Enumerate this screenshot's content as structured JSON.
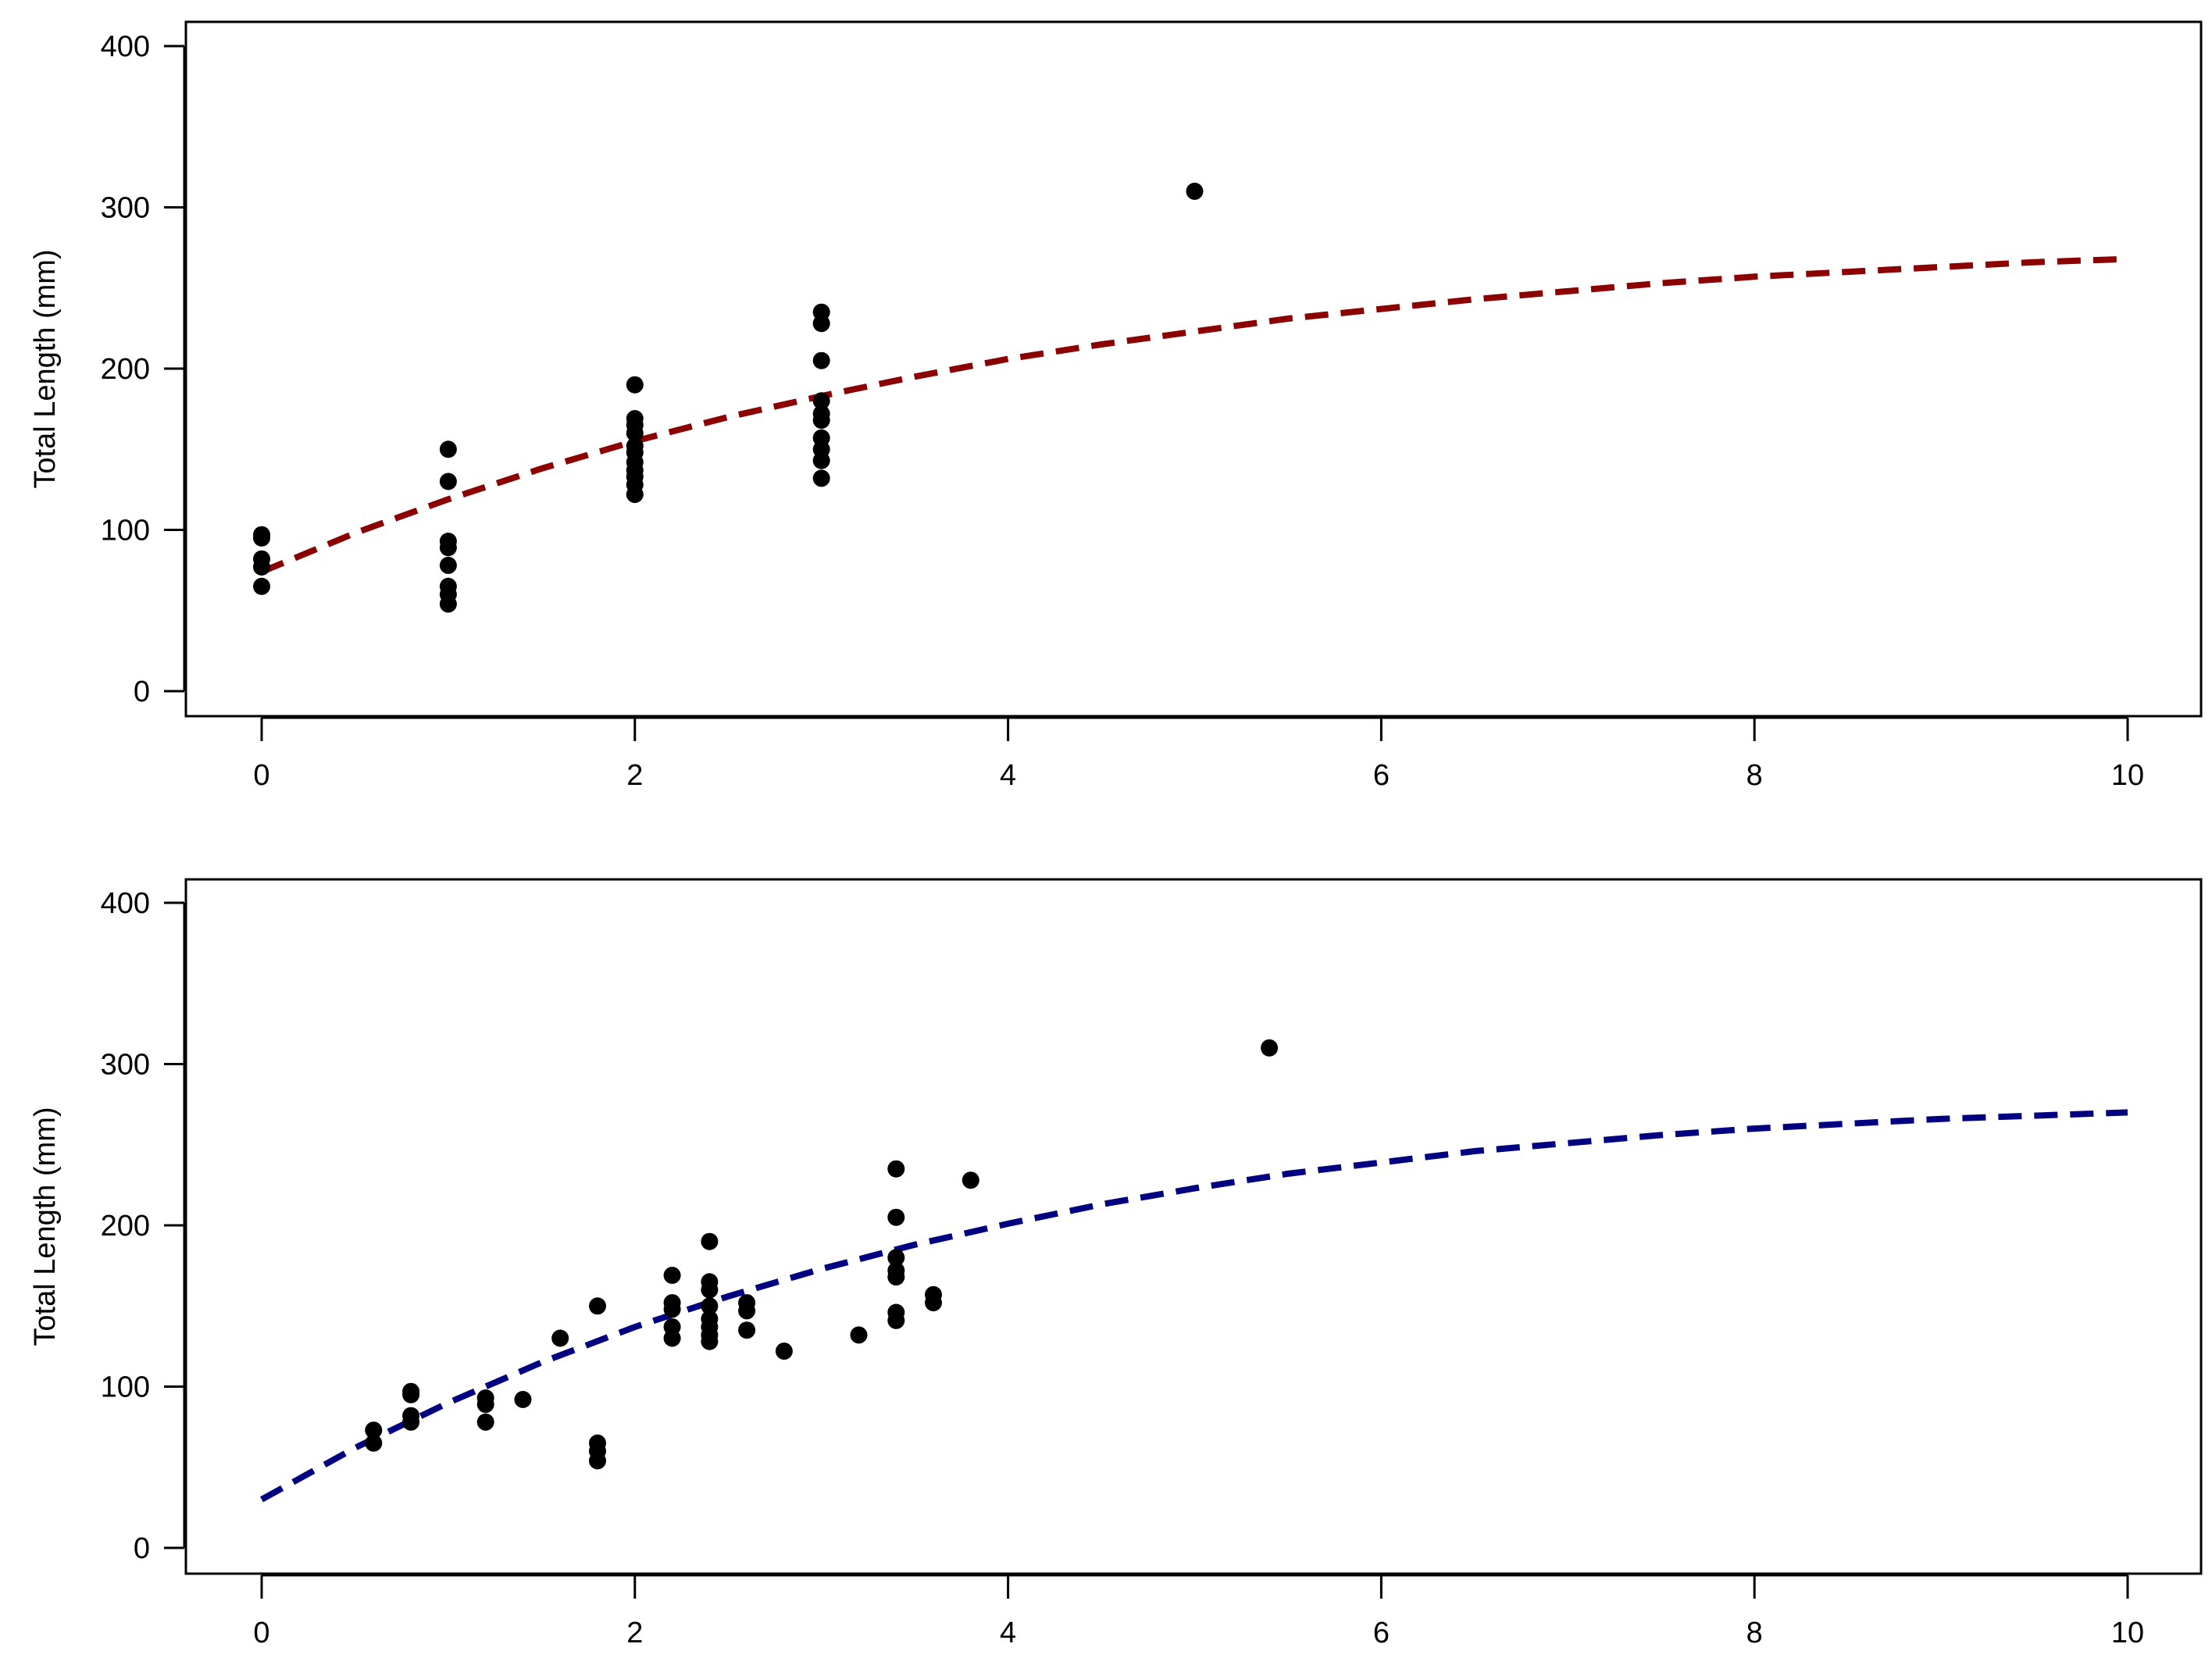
{
  "chart_data": [
    {
      "type": "scatter",
      "title": "",
      "xlabel": "",
      "ylabel": "Total Length (mm)",
      "xlim": [
        0,
        10
      ],
      "ylim": [
        0,
        400
      ],
      "xticks": [
        0,
        2,
        4,
        6,
        8,
        10
      ],
      "yticks": [
        0,
        100,
        200,
        300,
        400
      ],
      "grid": false,
      "series": [
        {
          "kind": "points",
          "color": "#000000",
          "points": [
            [
              0,
              97
            ],
            [
              0,
              95
            ],
            [
              0,
              82
            ],
            [
              0,
              77
            ],
            [
              0,
              65
            ],
            [
              1,
              150
            ],
            [
              1,
              130
            ],
            [
              1,
              93
            ],
            [
              1,
              89
            ],
            [
              1,
              78
            ],
            [
              1,
              65
            ],
            [
              1,
              60
            ],
            [
              1,
              54
            ],
            [
              2,
              190
            ],
            [
              2,
              169
            ],
            [
              2,
              165
            ],
            [
              2,
              160
            ],
            [
              2,
              152
            ],
            [
              2,
              148
            ],
            [
              2,
              142
            ],
            [
              2,
              137
            ],
            [
              2,
              133
            ],
            [
              2,
              128
            ],
            [
              2,
              122
            ],
            [
              3,
              235
            ],
            [
              3,
              228
            ],
            [
              3,
              205
            ],
            [
              3,
              180
            ],
            [
              3,
              172
            ],
            [
              3,
              168
            ],
            [
              3,
              157
            ],
            [
              3,
              150
            ],
            [
              3,
              143
            ],
            [
              3,
              132
            ],
            [
              5,
              310
            ]
          ]
        },
        {
          "kind": "fit-line",
          "style": "dashed",
          "color": "#8B0000",
          "x": [
            0,
            0.5,
            1,
            1.5,
            2,
            2.5,
            3,
            3.5,
            4,
            4.5,
            5,
            5.5,
            6,
            6.5,
            7,
            7.5,
            8,
            8.5,
            9,
            9.5,
            10
          ],
          "y": [
            74,
            98,
            119,
            138,
            155,
            170,
            183,
            195,
            206,
            215,
            223,
            231,
            237,
            243,
            248,
            253,
            257,
            260,
            263,
            266,
            268
          ]
        }
      ]
    },
    {
      "type": "scatter",
      "title": "",
      "xlabel": "",
      "ylabel": "Total Length (mm)",
      "xlim": [
        0,
        10
      ],
      "ylim": [
        0,
        400
      ],
      "xticks": [
        0,
        2,
        4,
        6,
        8,
        10
      ],
      "yticks": [
        0,
        100,
        200,
        300,
        400
      ],
      "grid": false,
      "series": [
        {
          "kind": "points",
          "color": "#000000",
          "points": [
            [
              0.6,
              73
            ],
            [
              0.6,
              65
            ],
            [
              0.8,
              97
            ],
            [
              0.8,
              95
            ],
            [
              0.8,
              82
            ],
            [
              0.8,
              78
            ],
            [
              1.2,
              93
            ],
            [
              1.2,
              89
            ],
            [
              1.2,
              78
            ],
            [
              1.4,
              92
            ],
            [
              1.6,
              130
            ],
            [
              1.8,
              150
            ],
            [
              1.8,
              65
            ],
            [
              1.8,
              60
            ],
            [
              1.8,
              54
            ],
            [
              2.2,
              169
            ],
            [
              2.2,
              152
            ],
            [
              2.2,
              148
            ],
            [
              2.2,
              137
            ],
            [
              2.2,
              130
            ],
            [
              2.4,
              190
            ],
            [
              2.4,
              165
            ],
            [
              2.4,
              160
            ],
            [
              2.4,
              150
            ],
            [
              2.4,
              142
            ],
            [
              2.4,
              137
            ],
            [
              2.4,
              132
            ],
            [
              2.4,
              128
            ],
            [
              2.6,
              152
            ],
            [
              2.6,
              147
            ],
            [
              2.6,
              135
            ],
            [
              2.8,
              122
            ],
            [
              3.2,
              132
            ],
            [
              3.4,
              235
            ],
            [
              3.4,
              205
            ],
            [
              3.4,
              180
            ],
            [
              3.4,
              172
            ],
            [
              3.4,
              168
            ],
            [
              3.4,
              146
            ],
            [
              3.4,
              141
            ],
            [
              3.6,
              157
            ],
            [
              3.6,
              152
            ],
            [
              3.8,
              228
            ],
            [
              5.4,
              310
            ]
          ]
        },
        {
          "kind": "fit-line",
          "style": "dashed",
          "color": "#000080",
          "x": [
            0,
            0.5,
            1,
            1.5,
            2,
            2.5,
            3,
            3.5,
            4,
            4.5,
            5,
            5.5,
            6,
            6.5,
            7,
            7.5,
            8,
            8.5,
            9,
            9.5,
            10
          ],
          "y": [
            30,
            62,
            90,
            115,
            137,
            156,
            173,
            188,
            201,
            213,
            223,
            232,
            239,
            246,
            251,
            256,
            260,
            263,
            266,
            268,
            270
          ]
        }
      ]
    }
  ]
}
